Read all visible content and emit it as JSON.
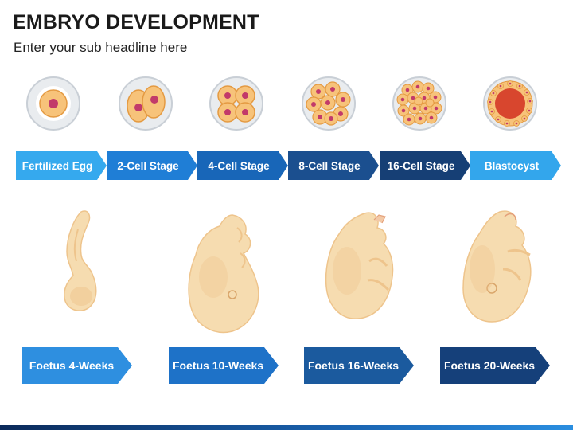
{
  "header": {
    "title": "EMBRYO DEVELOPMENT",
    "subtitle": "Enter your sub headline here"
  },
  "stages": [
    {
      "label": "Fertilized Egg",
      "color": "#35a9ee"
    },
    {
      "label": "2-Cell Stage",
      "color": "#1f7ed6"
    },
    {
      "label": "4-Cell Stage",
      "color": "#1866b8"
    },
    {
      "label": "8-Cell Stage",
      "color": "#1b4f8f"
    },
    {
      "label": "16-Cell Stage",
      "color": "#163f75"
    },
    {
      "label": "Blastocyst",
      "color": "#33a6ec"
    }
  ],
  "foetus": [
    {
      "label": "Foetus 4-Weeks",
      "color": "#2e8fe0"
    },
    {
      "label": "Foetus 10-Weeks",
      "color": "#1e72c8"
    },
    {
      "label": "Foetus 16-Weeks",
      "color": "#1b5a9e"
    },
    {
      "label": "Foetus 20-Weeks",
      "color": "#15407a"
    }
  ],
  "palette": {
    "membrane": "#dfe3e8",
    "cell": "#f7c37a",
    "nucleus": "#c23a6a",
    "skin": "#f6dcb0",
    "skin_shade": "#eec48c"
  }
}
